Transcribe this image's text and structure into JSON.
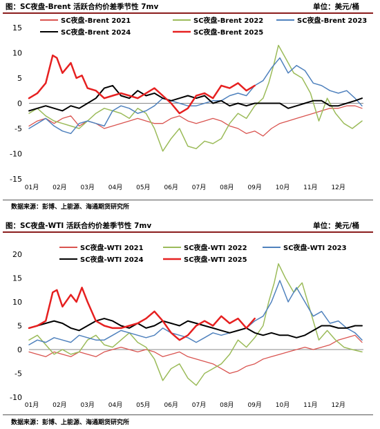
{
  "charts": [
    {
      "header_title": "图：SC夜盘-Brent 活跃合约价差季节性 7mv",
      "unit": "单位：美元/桶",
      "source": "数据来源：彭博、上能源、海通期货研究所"
    },
    {
      "header_title": "图：SC夜盘-WTI 活跃合约价差季节性 7mv",
      "unit": "单位：美元/桶",
      "source": "数据来源：彭博、上能源、海通期货研究所"
    }
  ],
  "chart_data": [
    {
      "type": "line",
      "title": "图：SC夜盘-Brent 活跃合约价差季节性 7mv",
      "ylabel": "单位：美元/桶",
      "ylim": [
        -15,
        15
      ],
      "yticks": [
        15,
        10,
        5,
        0,
        -5,
        -10,
        -15
      ],
      "xlim": [
        0,
        12
      ],
      "categories": [
        "01月",
        "02月",
        "03月",
        "04月",
        "05月",
        "06月",
        "07月",
        "08月",
        "09月",
        "10月",
        "11月",
        "12月"
      ],
      "grid": false,
      "legend": "top",
      "series": [
        {
          "name": "SC夜盘-Brent 2021",
          "color": "#d9534f",
          "width": 1.3,
          "x": [
            0.0,
            0.3,
            0.6,
            0.9,
            1.2,
            1.5,
            1.8,
            2.1,
            2.4,
            2.7,
            3.0,
            3.3,
            3.6,
            3.9,
            4.2,
            4.5,
            4.8,
            5.1,
            5.4,
            5.7,
            6.0,
            6.3,
            6.6,
            6.9,
            7.2,
            7.5,
            7.8,
            8.1,
            8.4,
            8.7,
            9.0,
            9.3,
            9.6,
            9.9,
            10.2,
            10.5,
            10.8,
            11.1,
            11.4,
            11.7,
            11.95
          ],
          "y": [
            -4.5,
            -3.5,
            -3.0,
            -4.0,
            -3.0,
            -2.5,
            -4.5,
            -3.5,
            -4.0,
            -5.0,
            -4.5,
            -4.0,
            -3.5,
            -3.0,
            -3.5,
            -4.0,
            -4.0,
            -3.0,
            -2.5,
            -3.5,
            -4.0,
            -3.5,
            -3.0,
            -3.5,
            -4.5,
            -5.0,
            -6.0,
            -5.5,
            -6.5,
            -5.0,
            -4.0,
            -3.5,
            -3.0,
            -2.5,
            -2.0,
            -1.5,
            -1.0,
            -1.0,
            -0.5,
            -0.5,
            -1.0
          ]
        },
        {
          "name": "SC夜盘-Brent 2022",
          "color": "#9bbb59",
          "width": 1.5,
          "x": [
            0.0,
            0.3,
            0.6,
            0.9,
            1.2,
            1.5,
            1.8,
            2.1,
            2.4,
            2.7,
            3.0,
            3.3,
            3.6,
            3.9,
            4.2,
            4.5,
            4.8,
            5.1,
            5.4,
            5.7,
            6.0,
            6.3,
            6.6,
            6.9,
            7.2,
            7.5,
            7.8,
            8.1,
            8.4,
            8.6,
            8.8,
            8.95,
            9.2,
            9.5,
            9.8,
            10.1,
            10.4,
            10.7,
            11.0,
            11.3,
            11.6,
            11.95
          ],
          "y": [
            -2.0,
            -1.0,
            -2.5,
            -3.5,
            -4.0,
            -4.5,
            -5.0,
            -3.5,
            -2.0,
            -1.0,
            -1.5,
            -2.0,
            -3.0,
            -1.0,
            -2.0,
            -5.0,
            -9.5,
            -7.0,
            -5.0,
            -8.5,
            -9.0,
            -7.5,
            -8.0,
            -7.0,
            -4.0,
            -2.0,
            -3.0,
            -0.5,
            1.0,
            4.0,
            8.0,
            11.5,
            9.0,
            6.0,
            5.0,
            2.0,
            -3.5,
            1.0,
            -2.0,
            -4.0,
            -5.0,
            -3.5
          ]
        },
        {
          "name": "SC夜盘-Brent 2023",
          "color": "#4f81bd",
          "width": 1.5,
          "x": [
            0.0,
            0.3,
            0.6,
            0.9,
            1.2,
            1.5,
            1.8,
            2.1,
            2.4,
            2.7,
            3.0,
            3.3,
            3.6,
            3.9,
            4.2,
            4.5,
            4.8,
            5.1,
            5.4,
            5.7,
            6.0,
            6.3,
            6.6,
            6.9,
            7.2,
            7.5,
            7.8,
            8.1,
            8.4,
            8.7,
            9.0,
            9.3,
            9.6,
            9.9,
            10.2,
            10.5,
            10.8,
            11.1,
            11.4,
            11.7,
            11.95
          ],
          "y": [
            -5.0,
            -4.0,
            -3.0,
            -4.5,
            -5.5,
            -6.0,
            -4.0,
            -3.5,
            -4.0,
            -4.5,
            -1.5,
            -0.5,
            -1.0,
            -2.0,
            -1.5,
            -0.5,
            1.0,
            0.5,
            0.0,
            -0.5,
            -0.5,
            0.0,
            0.5,
            0.5,
            1.5,
            2.0,
            1.5,
            3.5,
            4.5,
            7.0,
            9.0,
            6.0,
            7.5,
            6.5,
            4.0,
            3.5,
            2.5,
            2.0,
            2.5,
            1.0,
            -0.5
          ]
        },
        {
          "name": "SC夜盘-Brent 2024",
          "color": "#000000",
          "width": 2.0,
          "x": [
            0.0,
            0.3,
            0.6,
            0.9,
            1.2,
            1.5,
            1.8,
            2.1,
            2.4,
            2.7,
            3.0,
            3.3,
            3.6,
            3.9,
            4.2,
            4.5,
            4.8,
            5.1,
            5.4,
            5.7,
            6.0,
            6.3,
            6.6,
            6.9,
            7.2,
            7.5,
            7.8,
            8.1,
            8.4,
            8.7,
            9.0,
            9.3,
            9.6,
            9.9,
            10.2,
            10.5,
            10.8,
            11.1,
            11.4,
            11.7,
            11.95
          ],
          "y": [
            -1.5,
            -1.0,
            -0.5,
            -1.0,
            -1.5,
            -0.5,
            -1.0,
            0.0,
            1.0,
            3.0,
            3.5,
            1.5,
            1.0,
            2.5,
            1.5,
            2.0,
            1.0,
            0.5,
            1.0,
            1.5,
            1.0,
            1.5,
            0.0,
            0.5,
            -0.5,
            0.0,
            -0.5,
            0.0,
            0.0,
            0.0,
            0.0,
            -1.0,
            -0.5,
            0.0,
            0.5,
            0.5,
            -0.5,
            -0.5,
            0.0,
            0.5,
            1.0
          ]
        },
        {
          "name": "SC夜盘-Brent 2025",
          "color": "#e62020",
          "width": 2.5,
          "x": [
            0.0,
            0.3,
            0.6,
            0.85,
            1.0,
            1.2,
            1.5,
            1.7,
            1.9,
            2.1,
            2.4,
            2.7,
            3.0,
            3.3,
            3.6,
            3.9,
            4.2,
            4.5,
            4.8,
            5.1,
            5.4,
            5.7,
            6.0,
            6.3,
            6.6,
            6.9,
            7.2,
            7.5,
            7.8,
            8.1
          ],
          "y": [
            1.0,
            2.0,
            4.0,
            9.5,
            9.0,
            6.0,
            8.0,
            5.0,
            5.5,
            3.0,
            2.5,
            1.0,
            1.5,
            2.0,
            1.5,
            1.0,
            2.0,
            3.0,
            1.5,
            0.0,
            -2.0,
            -1.0,
            1.5,
            2.0,
            1.0,
            3.5,
            3.0,
            4.0,
            2.5,
            3.5
          ]
        }
      ]
    },
    {
      "type": "line",
      "title": "图：SC夜盘-WTI 活跃合约价差季节性 7mv",
      "ylabel": "单位：美元/桶",
      "ylim": [
        -10,
        20
      ],
      "yticks": [
        20,
        15,
        10,
        5,
        0,
        -5,
        -10
      ],
      "xlim": [
        0,
        12
      ],
      "categories": [
        "01月",
        "02月",
        "03月",
        "04月",
        "05月",
        "06月",
        "07月",
        "08月",
        "09月",
        "10月",
        "11月",
        "12月"
      ],
      "grid": false,
      "legend": "top",
      "series": [
        {
          "name": "SC夜盘-WTI 2021",
          "color": "#d9534f",
          "width": 1.3,
          "x": [
            0.0,
            0.3,
            0.6,
            0.9,
            1.2,
            1.5,
            1.8,
            2.1,
            2.4,
            2.7,
            3.0,
            3.3,
            3.6,
            3.9,
            4.2,
            4.5,
            4.8,
            5.1,
            5.4,
            5.7,
            6.0,
            6.3,
            6.6,
            6.9,
            7.2,
            7.5,
            7.8,
            8.1,
            8.4,
            8.7,
            9.0,
            9.3,
            9.6,
            9.9,
            10.2,
            10.5,
            10.8,
            11.1,
            11.4,
            11.7,
            11.95
          ],
          "y": [
            -0.5,
            -1.0,
            -1.5,
            -0.5,
            -1.0,
            -1.5,
            -0.5,
            -1.0,
            -1.5,
            -0.5,
            0.0,
            0.5,
            0.0,
            -0.5,
            0.0,
            -0.5,
            -1.5,
            -1.0,
            -0.5,
            -1.5,
            -2.0,
            -2.5,
            -3.0,
            -4.0,
            -5.0,
            -4.5,
            -3.5,
            -3.0,
            -2.0,
            -1.5,
            -1.0,
            -0.5,
            0.0,
            0.5,
            0.0,
            0.5,
            1.0,
            2.0,
            2.5,
            3.0,
            1.5
          ]
        },
        {
          "name": "SC夜盘-WTI 2022",
          "color": "#9bbb59",
          "width": 1.5,
          "x": [
            0.0,
            0.3,
            0.6,
            0.9,
            1.2,
            1.5,
            1.8,
            2.1,
            2.4,
            2.7,
            3.0,
            3.3,
            3.6,
            3.9,
            4.2,
            4.5,
            4.8,
            5.1,
            5.4,
            5.7,
            6.0,
            6.3,
            6.6,
            6.9,
            7.2,
            7.5,
            7.8,
            8.1,
            8.4,
            8.6,
            8.8,
            8.95,
            9.2,
            9.5,
            9.8,
            10.1,
            10.4,
            10.7,
            11.0,
            11.3,
            11.6,
            11.95
          ],
          "y": [
            2.0,
            3.0,
            1.0,
            -1.0,
            0.0,
            -1.0,
            -0.5,
            2.0,
            3.0,
            1.0,
            0.5,
            2.0,
            3.5,
            1.5,
            0.5,
            -2.0,
            -6.5,
            -4.0,
            -3.0,
            -6.0,
            -7.5,
            -5.0,
            -4.0,
            -3.0,
            -1.0,
            2.0,
            0.5,
            2.5,
            5.0,
            10.0,
            14.0,
            18.0,
            15.0,
            12.0,
            14.0,
            8.0,
            2.0,
            4.0,
            2.0,
            0.5,
            0.0,
            -0.5
          ]
        },
        {
          "name": "SC夜盘-WTI 2023",
          "color": "#4f81bd",
          "width": 1.5,
          "x": [
            0.0,
            0.3,
            0.6,
            0.9,
            1.2,
            1.5,
            1.8,
            2.1,
            2.4,
            2.7,
            3.0,
            3.3,
            3.6,
            3.9,
            4.2,
            4.5,
            4.8,
            5.1,
            5.4,
            5.7,
            6.0,
            6.3,
            6.6,
            6.9,
            7.2,
            7.5,
            7.8,
            8.1,
            8.4,
            8.7,
            9.0,
            9.3,
            9.6,
            9.9,
            10.2,
            10.5,
            10.8,
            11.1,
            11.4,
            11.7,
            11.95
          ],
          "y": [
            1.0,
            2.0,
            1.5,
            2.5,
            2.0,
            1.5,
            3.0,
            2.5,
            2.0,
            2.0,
            3.0,
            4.0,
            3.5,
            3.0,
            2.5,
            3.0,
            4.5,
            3.5,
            3.0,
            2.5,
            1.5,
            2.5,
            3.5,
            3.0,
            3.5,
            4.0,
            4.5,
            6.0,
            7.0,
            10.0,
            14.5,
            10.0,
            13.0,
            10.0,
            7.0,
            8.0,
            5.5,
            6.0,
            4.5,
            3.5,
            2.0
          ]
        },
        {
          "name": "SC夜盘-WTI 2024",
          "color": "#000000",
          "width": 2.0,
          "x": [
            0.0,
            0.3,
            0.6,
            0.9,
            1.2,
            1.5,
            1.8,
            2.1,
            2.4,
            2.7,
            3.0,
            3.3,
            3.6,
            3.9,
            4.2,
            4.5,
            4.8,
            5.1,
            5.4,
            5.7,
            6.0,
            6.3,
            6.6,
            6.9,
            7.2,
            7.5,
            7.8,
            8.1,
            8.4,
            8.7,
            9.0,
            9.3,
            9.6,
            9.9,
            10.2,
            10.5,
            10.8,
            11.1,
            11.4,
            11.7,
            11.95
          ],
          "y": [
            4.5,
            5.0,
            5.5,
            6.0,
            5.5,
            4.5,
            4.0,
            5.0,
            6.0,
            6.5,
            6.0,
            5.0,
            4.5,
            5.5,
            4.5,
            5.0,
            6.0,
            5.5,
            5.0,
            6.0,
            5.5,
            5.0,
            4.5,
            4.0,
            3.5,
            4.0,
            4.5,
            3.5,
            3.0,
            3.5,
            3.0,
            3.0,
            2.5,
            3.0,
            4.0,
            5.0,
            5.0,
            4.5,
            4.5,
            5.0,
            5.0
          ]
        },
        {
          "name": "SC夜盘-WTI 2025",
          "color": "#e62020",
          "width": 2.5,
          "x": [
            0.0,
            0.3,
            0.6,
            0.85,
            1.0,
            1.2,
            1.5,
            1.7,
            1.9,
            2.1,
            2.4,
            2.7,
            3.0,
            3.3,
            3.6,
            3.9,
            4.2,
            4.5,
            4.8,
            5.1,
            5.4,
            5.7,
            6.0,
            6.3,
            6.6,
            6.9,
            7.2,
            7.5,
            7.8,
            8.1
          ],
          "y": [
            4.5,
            5.0,
            6.0,
            12.0,
            12.5,
            9.0,
            11.5,
            10.0,
            13.0,
            10.0,
            6.0,
            5.0,
            4.5,
            4.5,
            5.0,
            5.5,
            6.5,
            8.0,
            6.0,
            3.5,
            2.0,
            3.0,
            5.0,
            6.0,
            5.0,
            7.0,
            5.5,
            6.5,
            4.5,
            6.5
          ]
        }
      ]
    }
  ]
}
